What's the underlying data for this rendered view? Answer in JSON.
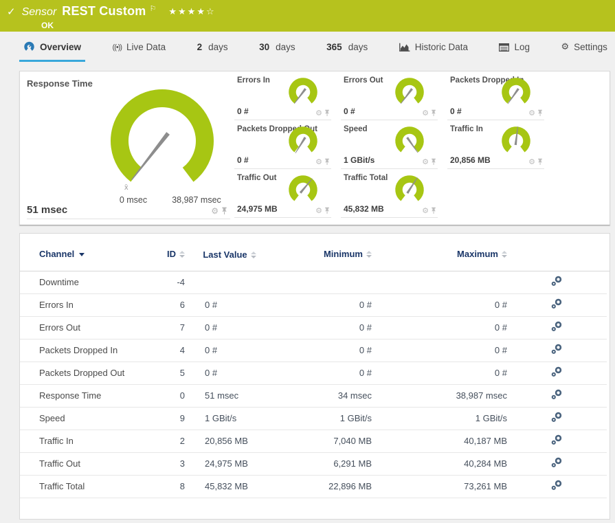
{
  "header": {
    "check": "✓",
    "kind": "Sensor",
    "title": "REST Custom",
    "flag": "⚐",
    "status": "OK",
    "rating": {
      "filled": 4,
      "total": 5
    },
    "colors": {
      "bar": "#b6c21e"
    }
  },
  "tabs": [
    {
      "id": "overview",
      "icon": "gauge-icon",
      "label": "Overview",
      "active": true
    },
    {
      "id": "live-data",
      "icon": "broadcast-icon",
      "label": "Live Data"
    },
    {
      "id": "2-days",
      "prefix": "2",
      "label": "days"
    },
    {
      "id": "30-days",
      "prefix": "30",
      "label": "days"
    },
    {
      "id": "365-days",
      "prefix": "365",
      "label": "days"
    },
    {
      "id": "historic-data",
      "icon": "chart-icon",
      "label": "Historic Data"
    },
    {
      "id": "log",
      "icon": "log-icon",
      "label": "Log"
    },
    {
      "id": "settings",
      "icon": "gear-icon",
      "label": "Settings"
    }
  ],
  "gauges": {
    "accent_color": "#a7c613",
    "needle_color": "#8d8d8d",
    "response_time": {
      "title": "Response Time",
      "value": "51 msec",
      "min_label": "0 msec",
      "max_label": "38,987 msec",
      "avg_marker": "x̄",
      "needle_deg": 128
    },
    "small": [
      {
        "title": "Errors In",
        "value": "0 #",
        "needle_deg": 127
      },
      {
        "title": "Errors Out",
        "value": "0 #",
        "needle_deg": 127
      },
      {
        "title": "Packets Dropped In",
        "value": "0 #",
        "needle_deg": 125
      },
      {
        "title": "Packets Dropped Out",
        "value": "0 #",
        "needle_deg": 122
      },
      {
        "title": "Speed",
        "value": "1 GBit/s",
        "needle_deg": 55
      },
      {
        "title": "Traffic In",
        "value": "20,856 MB",
        "needle_deg": 277
      },
      {
        "title": "Traffic Out",
        "value": "24,975 MB",
        "needle_deg": 310
      },
      {
        "title": "Traffic Total",
        "value": "45,832 MB",
        "needle_deg": 303
      }
    ]
  },
  "table": {
    "columns": {
      "channel": "Channel",
      "id": "ID",
      "last": "Last Value",
      "min": "Minimum",
      "max": "Maximum"
    },
    "rows": [
      {
        "channel": "Downtime",
        "id": "-4",
        "last": "",
        "min": "",
        "max": ""
      },
      {
        "channel": "Errors In",
        "id": "6",
        "last": "0 #",
        "min": "0 #",
        "max": "0 #"
      },
      {
        "channel": "Errors Out",
        "id": "7",
        "last": "0 #",
        "min": "0 #",
        "max": "0 #"
      },
      {
        "channel": "Packets Dropped In",
        "id": "4",
        "last": "0 #",
        "min": "0 #",
        "max": "0 #"
      },
      {
        "channel": "Packets Dropped Out",
        "id": "5",
        "last": "0 #",
        "min": "0 #",
        "max": "0 #"
      },
      {
        "channel": "Response Time",
        "id": "0",
        "last": "51 msec",
        "min": "34 msec",
        "max": "38,987 msec"
      },
      {
        "channel": "Speed",
        "id": "9",
        "last": "1 GBit/s",
        "min": "1 GBit/s",
        "max": "1 GBit/s"
      },
      {
        "channel": "Traffic In",
        "id": "2",
        "last": "20,856 MB",
        "min": "7,040 MB",
        "max": "40,187 MB"
      },
      {
        "channel": "Traffic Out",
        "id": "3",
        "last": "24,975 MB",
        "min": "6,291 MB",
        "max": "40,284 MB"
      },
      {
        "channel": "Traffic Total",
        "id": "8",
        "last": "45,832 MB",
        "min": "22,896 MB",
        "max": "73,261 MB"
      }
    ]
  }
}
